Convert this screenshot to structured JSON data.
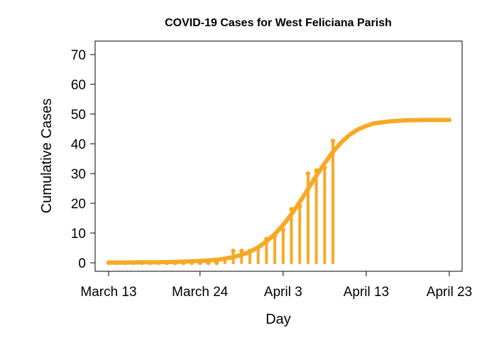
{
  "chart_data": {
    "type": "line",
    "title": "COVID-19 Cases for West Feliciana Parish",
    "xlabel": "Day",
    "ylabel": "Cumulative Cases",
    "x_ticks": [
      {
        "day": 0,
        "label": "March 13"
      },
      {
        "day": 11,
        "label": "March 24"
      },
      {
        "day": 21,
        "label": "April 3"
      },
      {
        "day": 31,
        "label": "April 13"
      },
      {
        "day": 41,
        "label": "April 23"
      }
    ],
    "y_ticks": [
      0,
      10,
      20,
      30,
      40,
      50,
      60,
      70
    ],
    "xlim": [
      0,
      41
    ],
    "ylim": [
      0,
      70
    ],
    "color": "#F9A825",
    "series": [
      {
        "kind": "observed",
        "x": [
          0,
          1,
          2,
          3,
          4,
          5,
          6,
          7,
          8,
          9,
          10,
          11,
          12,
          13,
          14,
          15,
          16,
          17,
          18,
          19,
          20,
          21,
          22,
          23,
          24,
          25,
          26,
          27
        ],
        "values": [
          0,
          0,
          0,
          0,
          0,
          0,
          0,
          0,
          0,
          0,
          0,
          0,
          0,
          0,
          1,
          4,
          4,
          4,
          5,
          8,
          9,
          11,
          18,
          19,
          30,
          31,
          32,
          41
        ]
      },
      {
        "kind": "fitted",
        "x": [
          0,
          2,
          4,
          6,
          8,
          10,
          11,
          12,
          13,
          14,
          15,
          16,
          17,
          18,
          19,
          20,
          21,
          22,
          23,
          24,
          25,
          26,
          27,
          28,
          29,
          30,
          31,
          32,
          34,
          36,
          38,
          41
        ],
        "values": [
          0.1,
          0.1,
          0.2,
          0.2,
          0.3,
          0.5,
          0.6,
          0.8,
          1.0,
          1.4,
          1.9,
          2.7,
          3.7,
          5.2,
          7.2,
          9.6,
          12.7,
          16.3,
          20.4,
          24.8,
          29.3,
          33.5,
          37.3,
          40.5,
          43.0,
          44.8,
          46.0,
          46.9,
          47.6,
          47.9,
          48.0,
          48.0
        ]
      }
    ]
  }
}
